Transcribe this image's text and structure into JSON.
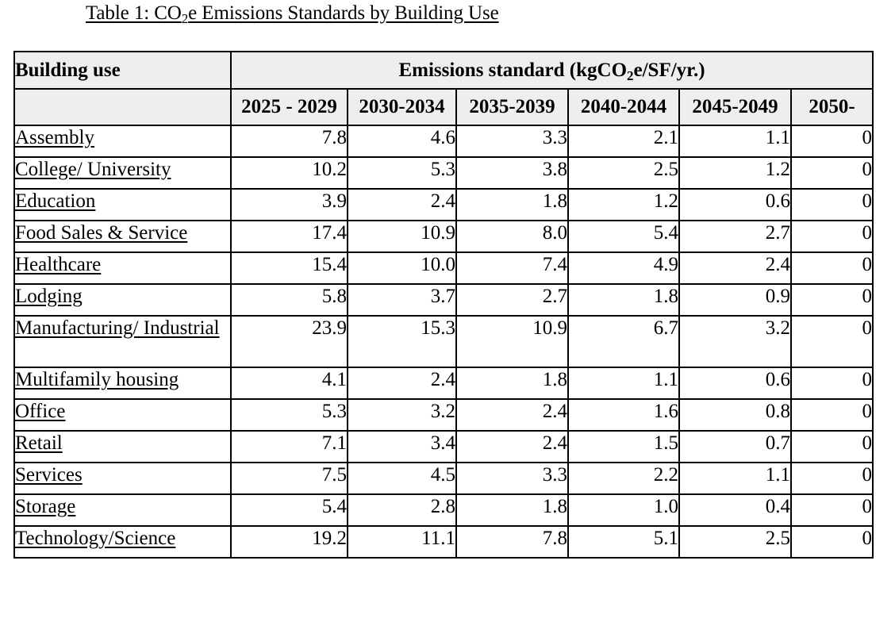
{
  "caption": {
    "prefix": "Table 1: CO",
    "subscript": "2",
    "suffix": "e Emissions Standards by Building Use"
  },
  "table": {
    "header": {
      "building_use": "Building use",
      "standard_prefix": "Emissions standard (kgCO",
      "standard_subscript": "2",
      "standard_suffix": "e/SF/yr.)"
    },
    "periods": [
      "2025 - 2029",
      "2030-2034",
      "2035-2039",
      "2040-2044",
      "2045-2049",
      "2050-"
    ],
    "rows": [
      {
        "use": "Assembly",
        "values": [
          "7.8",
          "4.6",
          "3.3",
          "2.1",
          "1.1",
          "0"
        ]
      },
      {
        "use": "College/ University",
        "values": [
          "10.2",
          "5.3",
          "3.8",
          "2.5",
          "1.2",
          "0"
        ]
      },
      {
        "use": "Education",
        "values": [
          "3.9",
          "2.4",
          "1.8",
          "1.2",
          "0.6",
          "0"
        ]
      },
      {
        "use": "Food Sales & Service",
        "values": [
          "17.4",
          "10.9",
          "8.0",
          "5.4",
          "2.7",
          "0"
        ]
      },
      {
        "use": "Healthcare",
        "values": [
          "15.4",
          "10.0",
          "7.4",
          "4.9",
          "2.4",
          "0"
        ]
      },
      {
        "use": "Lodging",
        "values": [
          "5.8",
          "3.7",
          "2.7",
          "1.8",
          "0.9",
          "0"
        ]
      },
      {
        "use": "Manufacturing/ Industrial",
        "values": [
          "23.9",
          "15.3",
          "10.9",
          "6.7",
          "3.2",
          "0"
        ]
      },
      {
        "use": "Multifamily housing",
        "values": [
          "4.1",
          "2.4",
          "1.8",
          "1.1",
          "0.6",
          "0"
        ]
      },
      {
        "use": "Office",
        "values": [
          "5.3",
          "3.2",
          "2.4",
          "1.6",
          "0.8",
          "0"
        ]
      },
      {
        "use": "Retail",
        "values": [
          "7.1",
          "3.4",
          "2.4",
          "1.5",
          "0.7",
          "0"
        ]
      },
      {
        "use": "Services",
        "values": [
          "7.5",
          "4.5",
          "3.3",
          "2.2",
          "1.1",
          "0"
        ]
      },
      {
        "use": "Storage",
        "values": [
          "5.4",
          "2.8",
          "1.8",
          "1.0",
          "0.4",
          "0"
        ]
      },
      {
        "use": "Technology/Science",
        "values": [
          "19.2",
          "11.1",
          "7.8",
          "5.1",
          "2.5",
          "0"
        ]
      }
    ]
  }
}
